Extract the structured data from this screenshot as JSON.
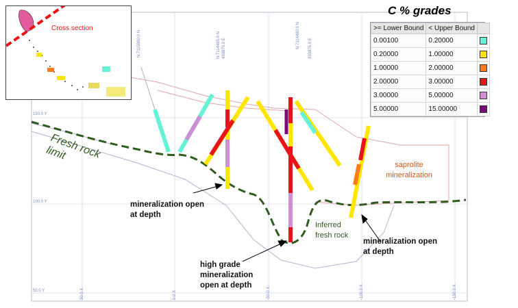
{
  "legend": {
    "title": "C % grades",
    "header_lower": ">= Lower Bound",
    "header_upper": "< Upper Bound",
    "rows": [
      {
        "lower": "0.00100",
        "upper": "0.20000",
        "color": "#66f2d6"
      },
      {
        "lower": "0.20000",
        "upper": "1.00000",
        "color": "#ffe600"
      },
      {
        "lower": "1.00000",
        "upper": "2.00000",
        "color": "#ff7a1a"
      },
      {
        "lower": "2.00000",
        "upper": "3.00000",
        "color": "#e8141c"
      },
      {
        "lower": "3.00000",
        "upper": "5.00000",
        "color": "#cf8fd4"
      },
      {
        "lower": "5.00000",
        "upper": "15.00000",
        "color": "#7a0a7a"
      }
    ]
  },
  "inset": {
    "label": "Cross section"
  },
  "annotations": {
    "fresh_rock_limit": "Fresh rock limit",
    "saprolite": "saprolite mineralization",
    "inferred": "Inferred fresh rock",
    "open_depth_left": "mineralization open at depth",
    "high_grade": "high grade mineralization open at depth",
    "open_depth_right": "mineralization open at depth"
  },
  "axis": {
    "rl_labels": [
      "150.0 Y",
      "100.0 Y",
      "50.0 Y"
    ],
    "easting_labels": [
      "50.0 X",
      "0.0 X",
      "-50.0 X",
      "-100.0 X",
      "-150.0 X"
    ],
    "top_labels": [
      "N:7115880.0 N",
      "N:7114485.0 N",
      "433870.0 E",
      "N:7114480.0 N",
      "433875.0 E"
    ]
  },
  "colors": {
    "fresh_rock_line": "#2f5b1e",
    "topo_line": "#e0a8a8",
    "grid": "#d6d6e6",
    "section_line": "#ee1111"
  }
}
